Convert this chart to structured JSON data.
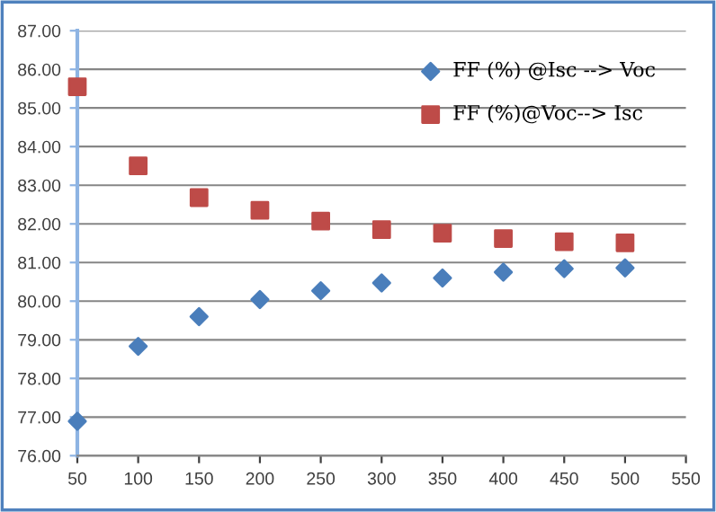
{
  "chart_data": {
    "type": "scatter",
    "x": [
      50,
      100,
      150,
      200,
      250,
      300,
      350,
      400,
      450,
      500
    ],
    "series": [
      {
        "name": "FF (%) @Isc --> Voc",
        "color": "#4a7ebb",
        "marker": "diamond",
        "values": [
          76.89,
          78.83,
          79.6,
          80.04,
          80.27,
          80.47,
          80.6,
          80.75,
          80.84,
          80.86
        ]
      },
      {
        "name": "FF (%)@Voc--> Isc",
        "color": "#be4b48",
        "marker": "square",
        "values": [
          85.55,
          83.5,
          82.68,
          82.35,
          82.07,
          81.85,
          81.76,
          81.62,
          81.54,
          81.51
        ]
      }
    ],
    "xlim": [
      50,
      550
    ],
    "xticks": [
      50,
      100,
      150,
      200,
      250,
      300,
      350,
      400,
      450,
      500,
      550
    ],
    "ylim": [
      76,
      87
    ],
    "yticks": [
      {
        "value": 76,
        "label": "76.00"
      },
      {
        "value": 77,
        "label": "77.00"
      },
      {
        "value": 78,
        "label": "78.00"
      },
      {
        "value": 79,
        "label": "79.00"
      },
      {
        "value": 80,
        "label": "80.00"
      },
      {
        "value": 81,
        "label": "81.00"
      },
      {
        "value": 82,
        "label": "82.00"
      },
      {
        "value": 83,
        "label": "83.00"
      },
      {
        "value": 84,
        "label": "84.00"
      },
      {
        "value": 85,
        "label": "85.00"
      },
      {
        "value": 86,
        "label": "86.00"
      },
      {
        "value": 87,
        "label": "87.00"
      }
    ],
    "grid": "y",
    "legend": "top right"
  }
}
